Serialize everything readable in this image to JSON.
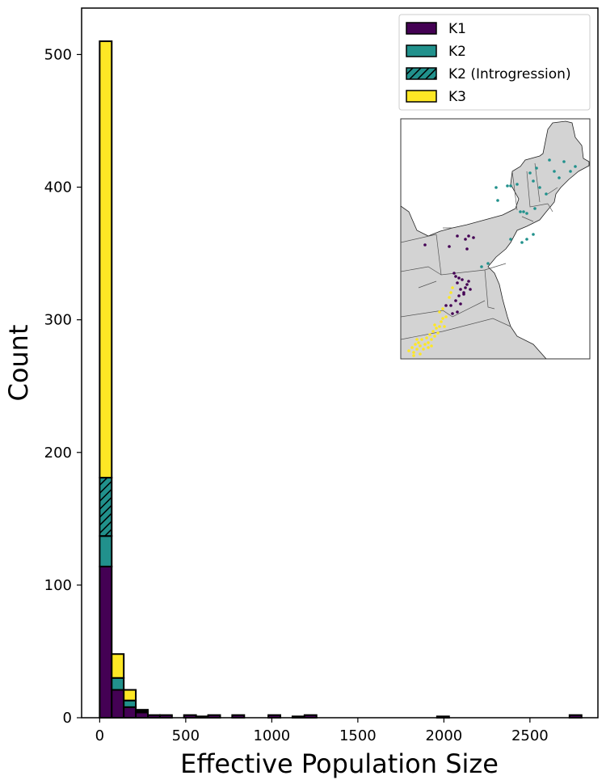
{
  "chart_data": {
    "type": "bar",
    "stacked": true,
    "xlabel": "Effective Population Size",
    "ylabel": "Count",
    "xlim": [
      -105,
      2895
    ],
    "ylim": [
      0,
      535
    ],
    "xticks": [
      0,
      500,
      1000,
      1500,
      2000,
      2500
    ],
    "yticks": [
      0,
      100,
      200,
      300,
      400,
      500
    ],
    "bin_width": 70,
    "bins": [
      0,
      70,
      140,
      210,
      280,
      350,
      490,
      560,
      630,
      770,
      980,
      1120,
      1190,
      1960,
      2730
    ],
    "series": [
      {
        "name": "K1",
        "color": "#440154",
        "hatch": false,
        "values": [
          114,
          21,
          8,
          4,
          2,
          2,
          2,
          1,
          2,
          2,
          2,
          1,
          2,
          1,
          2
        ]
      },
      {
        "name": "K2",
        "color": "#21918c",
        "hatch": false,
        "values": [
          23,
          9,
          5,
          1,
          0,
          0,
          0,
          0,
          0,
          0,
          0,
          0,
          0,
          0,
          0
        ]
      },
      {
        "name": "K2 (Introgression)",
        "color": "#21918c",
        "hatch": true,
        "values": [
          44,
          0,
          0,
          0,
          0,
          0,
          0,
          0,
          0,
          0,
          0,
          0,
          0,
          0,
          0
        ]
      },
      {
        "name": "K3",
        "color": "#fde725",
        "hatch": false,
        "values": [
          329,
          18,
          8,
          1,
          0,
          0,
          0,
          0,
          0,
          0,
          0,
          0,
          0,
          0,
          0
        ]
      }
    ],
    "legend": "top-right",
    "grid": false,
    "inset": {
      "type": "map",
      "region": "Northeastern United States",
      "point_colors": {
        "K1": "#440154",
        "K2": "#21918c",
        "K3": "#fde725"
      }
    }
  }
}
